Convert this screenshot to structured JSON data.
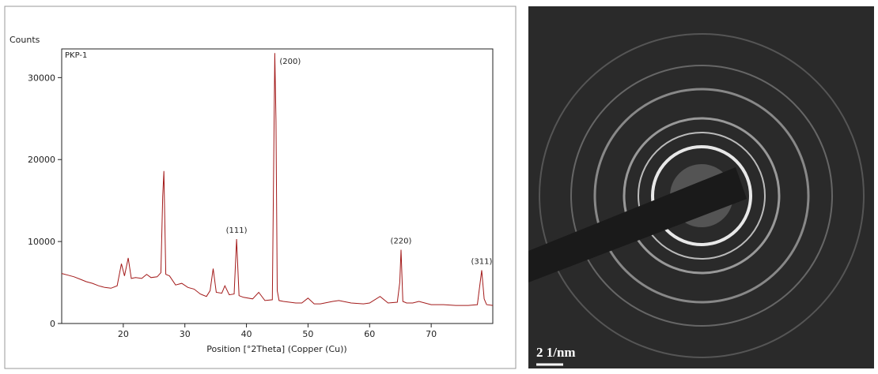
{
  "chart_data": {
    "type": "line",
    "y_label": "Counts",
    "x_label": "Position [°2Theta] (Copper (Cu))",
    "sample": "PKP-1",
    "x": [
      10,
      11,
      12,
      13,
      14,
      15,
      16,
      17,
      18,
      19,
      19.7,
      20.2,
      20.8,
      21.3,
      22,
      23,
      23.8,
      24.5,
      25.5,
      26.1,
      26.4,
      26.6,
      26.9,
      27.5,
      28.5,
      29.5,
      30.5,
      31.5,
      32.5,
      33.5,
      34.1,
      34.6,
      35.1,
      36,
      36.5,
      37.2,
      38,
      38.4,
      38.8,
      39.5,
      41,
      42,
      43,
      44.2,
      44.6,
      44.8,
      45,
      45.3,
      46,
      47,
      48,
      49,
      50,
      51,
      52,
      54,
      55,
      57,
      59,
      60,
      61.7,
      63,
      64.5,
      64.9,
      65.1,
      65.4,
      66,
      67,
      68,
      70,
      72,
      74,
      76,
      77.5,
      78.2,
      78.6,
      79,
      80
    ],
    "series": [
      {
        "color": "#a31a1a",
        "values": [
          6100,
          5900,
          5700,
          5400,
          5100,
          4900,
          4600,
          4400,
          4300,
          4600,
          7300,
          5800,
          8000,
          5500,
          5600,
          5500,
          6000,
          5600,
          5700,
          6200,
          15500,
          18600,
          6000,
          5800,
          4700,
          4900,
          4400,
          4200,
          3600,
          3300,
          4000,
          6700,
          3800,
          3700,
          4600,
          3500,
          3600,
          10300,
          3400,
          3200,
          3000,
          3800,
          2800,
          2900,
          33000,
          24800,
          4000,
          2800,
          2700,
          2600,
          2500,
          2500,
          3100,
          2400,
          2400,
          2700,
          2800,
          2500,
          2400,
          2500,
          3300,
          2500,
          2600,
          5000,
          9000,
          2700,
          2500,
          2500,
          2700,
          2300,
          2300,
          2200,
          2200,
          2300,
          6500,
          3000,
          2300,
          2200
        ]
      }
    ],
    "annotations": [
      {
        "text": "(111)",
        "x": 38.4,
        "y": 10300
      },
      {
        "text": "(200)",
        "x": 44.6,
        "y": 33000
      },
      {
        "text": "(220)",
        "x": 65.1,
        "y": 9000
      },
      {
        "text": "(311)",
        "x": 78.2,
        "y": 6500
      }
    ],
    "xlim": [
      10,
      80
    ],
    "ylim": [
      0,
      33500
    ],
    "xticks": [
      20,
      30,
      40,
      50,
      60,
      70
    ],
    "yticks": [
      0,
      10000,
      20000,
      30000
    ]
  },
  "image": {
    "scale_label": "2 1/nm"
  }
}
